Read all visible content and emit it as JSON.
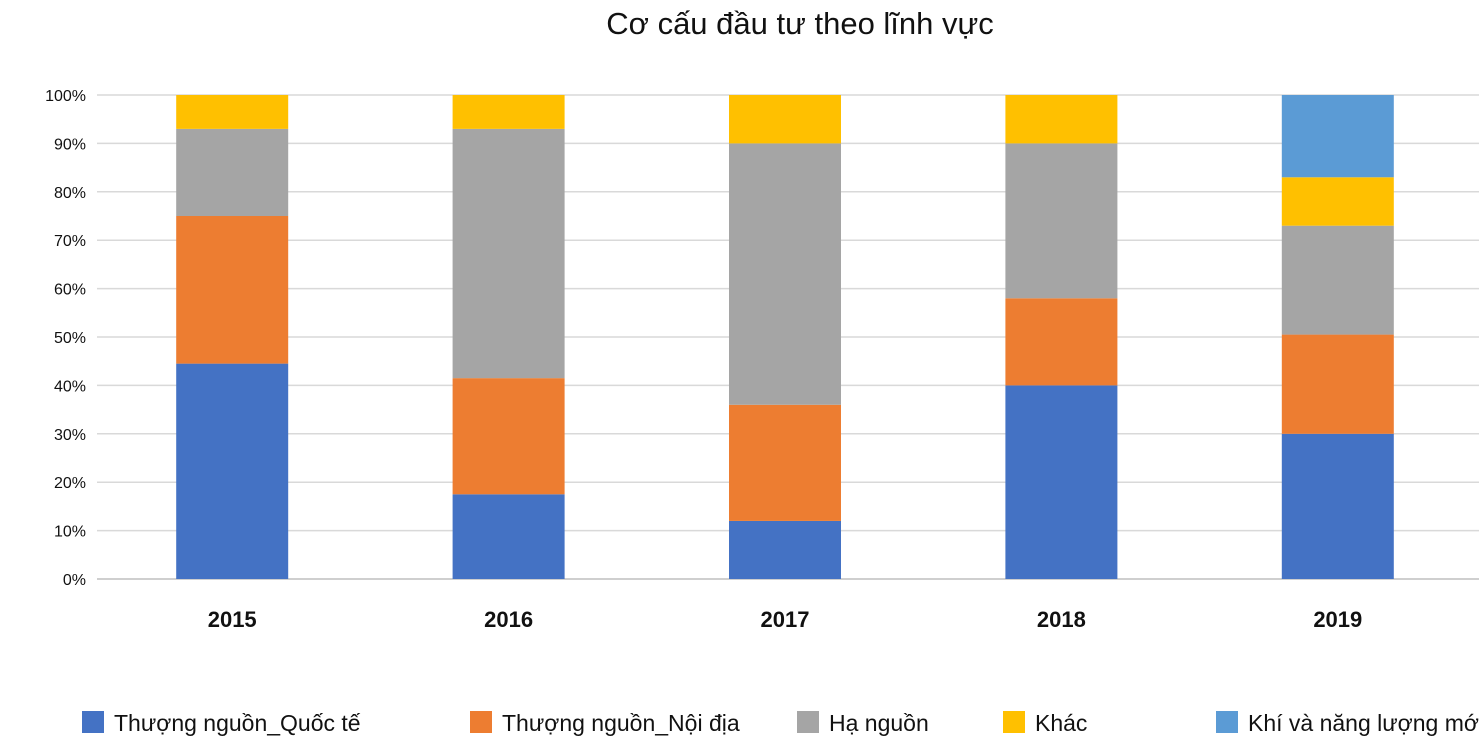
{
  "chart_data": {
    "type": "bar",
    "stacked": true,
    "title": "Cơ cấu đầu tư theo lĩnh vực",
    "xlabel": "",
    "ylabel": "",
    "categories": [
      "2015",
      "2016",
      "2017",
      "2018",
      "2019"
    ],
    "y_ticks": [
      "0%",
      "10%",
      "20%",
      "30%",
      "40%",
      "50%",
      "60%",
      "70%",
      "80%",
      "90%",
      "100%"
    ],
    "ylim": [
      0,
      100
    ],
    "grid": true,
    "legend_position": "bottom",
    "series": [
      {
        "name": "Thượng nguồn_Quốc tế",
        "color": "#4472C4",
        "values": [
          44.5,
          17.5,
          12.0,
          40.0,
          30.0
        ]
      },
      {
        "name": "Thượng nguồn_Nội địa",
        "color": "#ED7D31",
        "values": [
          30.5,
          24.0,
          24.0,
          18.0,
          20.5
        ]
      },
      {
        "name": "Hạ nguồn",
        "color": "#A5A5A5",
        "values": [
          18.0,
          51.5,
          54.0,
          32.0,
          22.5
        ]
      },
      {
        "name": "Khác",
        "color": "#FFC000",
        "values": [
          7.0,
          7.0,
          10.0,
          10.0,
          10.0
        ]
      },
      {
        "name": "Khí và năng lượng mới",
        "color": "#5B9BD5",
        "values": [
          0,
          0,
          0,
          0,
          17.0
        ]
      }
    ]
  }
}
